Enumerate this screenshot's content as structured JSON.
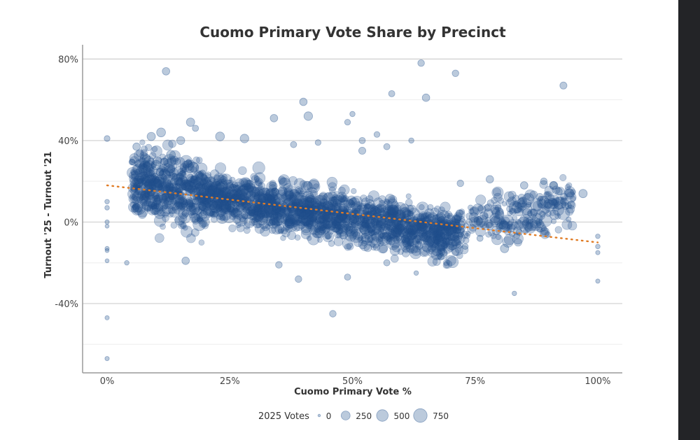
{
  "chart_data": {
    "type": "scatter",
    "title": "Cuomo Primary Vote Share by Precinct",
    "xlabel": "Cuomo Primary Vote %",
    "ylabel": "Turnout '25 - Turnout '21",
    "xlim": [
      -0.05,
      1.05
    ],
    "ylim": [
      -0.74,
      0.87
    ],
    "x_ticks": [
      {
        "value": 0,
        "label": "0%"
      },
      {
        "value": 0.25,
        "label": "25%"
      },
      {
        "value": 0.5,
        "label": "50%"
      },
      {
        "value": 0.75,
        "label": "75%"
      },
      {
        "value": 1.0,
        "label": "100%"
      }
    ],
    "y_ticks": [
      {
        "value": 0.8,
        "label": "80%"
      },
      {
        "value": 0.4,
        "label": "40%"
      },
      {
        "value": 0,
        "label": "0%"
      },
      {
        "value": -0.4,
        "label": "-40%"
      }
    ],
    "y_minor_gridlines": [
      0.6,
      0.2,
      -0.2,
      -0.6
    ],
    "grid": true,
    "point_color": "#1f4e8c",
    "trend_color": "#e07b24",
    "trend_line": {
      "x": [
        0,
        1.0
      ],
      "y": [
        0.18,
        -0.1
      ],
      "style": "dotted"
    },
    "size_legend": {
      "title": "2025 Votes",
      "entries": [
        {
          "label": "0",
          "value": 0
        },
        {
          "label": "250",
          "value": 250
        },
        {
          "label": "500",
          "value": 500
        },
        {
          "label": "750",
          "value": 750
        }
      ],
      "placement": "bottom-center"
    },
    "series": [
      {
        "points": [
          {
            "x": 0.0,
            "y": 0.41,
            "votes": 60
          },
          {
            "x": 0.0,
            "y": 0.1,
            "votes": 20
          },
          {
            "x": 0.0,
            "y": 0.07,
            "votes": 20
          },
          {
            "x": 0.0,
            "y": 0.0,
            "votes": 15
          },
          {
            "x": 0.0,
            "y": -0.02,
            "votes": 10
          },
          {
            "x": 0.0,
            "y": -0.13,
            "votes": 15
          },
          {
            "x": 0.0,
            "y": -0.14,
            "votes": 10
          },
          {
            "x": 0.0,
            "y": -0.19,
            "votes": 10
          },
          {
            "x": 0.0,
            "y": -0.47,
            "votes": 15
          },
          {
            "x": 0.0,
            "y": -0.67,
            "votes": 15
          },
          {
            "x": 0.12,
            "y": 0.74,
            "votes": 150
          },
          {
            "x": 0.4,
            "y": 0.59,
            "votes": 150
          },
          {
            "x": 0.41,
            "y": 0.52,
            "votes": 220
          },
          {
            "x": 0.34,
            "y": 0.51,
            "votes": 150
          },
          {
            "x": 0.5,
            "y": 0.53,
            "votes": 40
          },
          {
            "x": 0.49,
            "y": 0.49,
            "votes": 60
          },
          {
            "x": 0.58,
            "y": 0.63,
            "votes": 80
          },
          {
            "x": 0.64,
            "y": 0.78,
            "votes": 100
          },
          {
            "x": 0.65,
            "y": 0.61,
            "votes": 150
          },
          {
            "x": 0.71,
            "y": 0.73,
            "votes": 100
          },
          {
            "x": 0.93,
            "y": 0.67,
            "votes": 120
          },
          {
            "x": 0.17,
            "y": 0.49,
            "votes": 200
          },
          {
            "x": 0.18,
            "y": 0.46,
            "votes": 80
          },
          {
            "x": 0.23,
            "y": 0.42,
            "votes": 250
          },
          {
            "x": 0.28,
            "y": 0.41,
            "votes": 220
          },
          {
            "x": 0.38,
            "y": 0.38,
            "votes": 80
          },
          {
            "x": 0.43,
            "y": 0.39,
            "votes": 60
          },
          {
            "x": 0.52,
            "y": 0.4,
            "votes": 80
          },
          {
            "x": 0.55,
            "y": 0.43,
            "votes": 60
          },
          {
            "x": 0.62,
            "y": 0.4,
            "votes": 40
          },
          {
            "x": 0.52,
            "y": 0.35,
            "votes": 120
          },
          {
            "x": 0.57,
            "y": 0.37,
            "votes": 80
          },
          {
            "x": 0.97,
            "y": 0.14,
            "votes": 200
          },
          {
            "x": 0.94,
            "y": 0.08,
            "votes": 80
          },
          {
            "x": 1.0,
            "y": -0.07,
            "votes": 20
          },
          {
            "x": 1.0,
            "y": -0.12,
            "votes": 20
          },
          {
            "x": 1.0,
            "y": -0.15,
            "votes": 15
          },
          {
            "x": 1.0,
            "y": -0.29,
            "votes": 15
          },
          {
            "x": 0.81,
            "y": -0.13,
            "votes": 200
          },
          {
            "x": 0.83,
            "y": -0.35,
            "votes": 20
          },
          {
            "x": 0.46,
            "y": -0.45,
            "votes": 100
          },
          {
            "x": 0.39,
            "y": -0.28,
            "votes": 100
          },
          {
            "x": 0.35,
            "y": -0.21,
            "votes": 100
          },
          {
            "x": 0.49,
            "y": -0.27,
            "votes": 80
          },
          {
            "x": 0.57,
            "y": -0.2,
            "votes": 80
          },
          {
            "x": 0.63,
            "y": -0.25,
            "votes": 20
          },
          {
            "x": 0.04,
            "y": -0.2,
            "votes": 20
          },
          {
            "x": 0.16,
            "y": -0.19,
            "votes": 150
          },
          {
            "x": 0.68,
            "y": -0.17,
            "votes": 100
          },
          {
            "x": 0.73,
            "y": -0.12,
            "votes": 60
          },
          {
            "x": 0.85,
            "y": 0.18,
            "votes": 150
          },
          {
            "x": 0.89,
            "y": 0.2,
            "votes": 100
          },
          {
            "x": 0.91,
            "y": 0.18,
            "votes": 150
          },
          {
            "x": 0.92,
            "y": 0.15,
            "votes": 150
          },
          {
            "x": 0.78,
            "y": 0.21,
            "votes": 150
          },
          {
            "x": 0.72,
            "y": 0.19,
            "votes": 100
          },
          {
            "x": 0.8,
            "y": -0.02,
            "votes": 100
          },
          {
            "x": 0.84,
            "y": -0.05,
            "votes": 80
          },
          {
            "x": 0.88,
            "y": 0.0,
            "votes": 100
          },
          {
            "x": 0.76,
            "y": -0.08,
            "votes": 80
          },
          {
            "x": 0.06,
            "y": 0.37,
            "votes": 150
          },
          {
            "x": 0.09,
            "y": 0.42,
            "votes": 200
          },
          {
            "x": 0.11,
            "y": 0.44,
            "votes": 250
          },
          {
            "x": 0.08,
            "y": 0.31,
            "votes": 200
          },
          {
            "x": 0.1,
            "y": 0.28,
            "votes": 300
          },
          {
            "x": 0.13,
            "y": 0.33,
            "votes": 250
          },
          {
            "x": 0.15,
            "y": 0.4,
            "votes": 180
          }
        ]
      }
    ],
    "cloud": {
      "description_count": 2200,
      "x_range": [
        0.05,
        0.95
      ],
      "trend_start": 0.21,
      "trend_slope": -0.39,
      "spread": [
        0.085,
        0.06
      ]
    }
  }
}
